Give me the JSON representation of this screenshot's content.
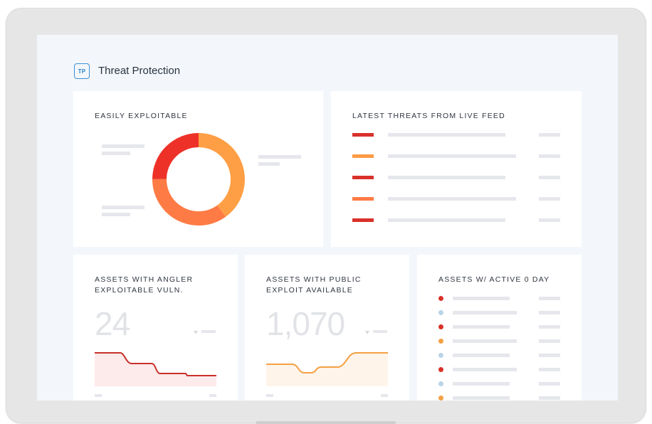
{
  "app": {
    "badge": "TP",
    "title": "Threat Protection"
  },
  "colors": {
    "red": "#e2382a",
    "dark_red": "#d62f2a",
    "orange": "#ff7a45",
    "light_orange": "#ffa04a",
    "amber": "#f5a043",
    "light_blue": "#b9d4e6",
    "placeholder": "#e6e7ec"
  },
  "cards": {
    "easily_exploitable": {
      "title": "EASILY EXPLOITABLE",
      "donut": {
        "segments": [
          {
            "color": "#ff9f45",
            "fraction": 0.4
          },
          {
            "color": "#ff7b45",
            "fraction": 0.35
          },
          {
            "color": "#ee3128",
            "fraction": 0.25
          }
        ]
      }
    },
    "latest_threats": {
      "title": "LATEST THREATS FROM LIVE FEED",
      "rows": [
        {
          "color": "#d9312a"
        },
        {
          "color": "#ff9a45"
        },
        {
          "color": "#d9312a"
        },
        {
          "color": "#ff7a45"
        },
        {
          "color": "#d9312a"
        }
      ]
    },
    "angler": {
      "title_line1": "ASSETS WITH ANGLER",
      "title_line2": "EXPLOITABLE VULN.",
      "value": "24",
      "trend_color": "#c9302c",
      "fill_color": "#fdeaea"
    },
    "public_exploit": {
      "title_line1": "ASSETS WITH PUBLIC",
      "title_line2": "EXPLOIT AVAILABLE",
      "value": "1,070",
      "trend_color": "#f5a043",
      "fill_color": "#fff4ea"
    },
    "zero_day": {
      "title": "ASSETS W/ ACTIVE 0 DAY",
      "rows": [
        {
          "color": "#d9312a"
        },
        {
          "color": "#b9d4e6"
        },
        {
          "color": "#d9312a"
        },
        {
          "color": "#f5a043"
        },
        {
          "color": "#b9d4e6"
        },
        {
          "color": "#d9312a"
        },
        {
          "color": "#b9d4e6"
        },
        {
          "color": "#f5a043"
        }
      ]
    }
  }
}
